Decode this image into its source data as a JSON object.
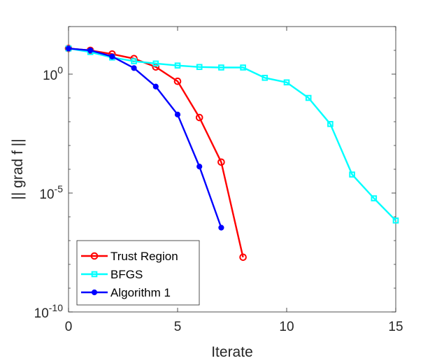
{
  "chart_data": {
    "type": "line",
    "xlabel": "Iterate",
    "ylabel": "|| grad f ||",
    "xlim": [
      0,
      15
    ],
    "ylim": [
      1e-10,
      100
    ],
    "yscale": "log",
    "grid": false,
    "x_ticks": [
      {
        "value": 0,
        "label": "0"
      },
      {
        "value": 5,
        "label": "5"
      },
      {
        "value": 10,
        "label": "10"
      },
      {
        "value": 15,
        "label": "15"
      }
    ],
    "y_ticks": [
      {
        "value": 1e-10,
        "mantissa": "10",
        "exp": "-10"
      },
      {
        "value": 1e-05,
        "mantissa": "10",
        "exp": "-5"
      },
      {
        "value": 1,
        "mantissa": "10",
        "exp": "0"
      }
    ],
    "legend": {
      "placement": "bottom-left"
    },
    "series": [
      {
        "name": "Trust Region",
        "color": "#ff0000",
        "marker": "circle",
        "x": [
          0,
          1,
          2,
          3,
          4,
          5,
          6,
          7,
          8
        ],
        "y": [
          12,
          10,
          7,
          4.5,
          2,
          0.5,
          0.015,
          0.0002,
          2e-08
        ]
      },
      {
        "name": "BFGS",
        "color": "#00ffff",
        "marker": "square",
        "x": [
          0,
          1,
          2,
          3,
          4,
          5,
          6,
          7,
          8,
          9,
          10,
          11,
          12,
          13,
          14,
          15
        ],
        "y": [
          12,
          8.5,
          5,
          3.5,
          2.8,
          2.3,
          2.0,
          1.9,
          1.9,
          0.7,
          0.45,
          0.1,
          0.008,
          6e-05,
          6e-06,
          7e-07
        ]
      },
      {
        "name": "Algorithm 1",
        "color": "#0000ff",
        "marker": "dot",
        "x": [
          0,
          1,
          2,
          3,
          4,
          5,
          6,
          7
        ],
        "y": [
          12,
          10,
          5.5,
          1.8,
          0.3,
          0.02,
          0.00013,
          3.5e-07
        ]
      }
    ]
  }
}
